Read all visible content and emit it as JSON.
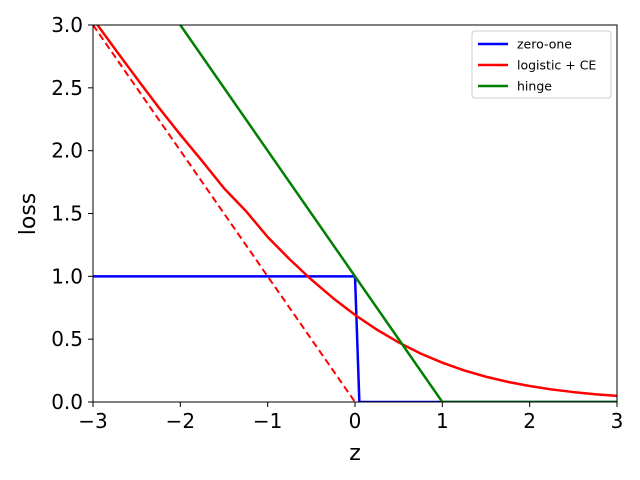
{
  "chart_data": {
    "type": "line",
    "title": "",
    "xlabel": "z",
    "ylabel": "loss",
    "xlim": [
      -3,
      3
    ],
    "ylim": [
      0,
      3
    ],
    "xticks": [
      -3,
      -2,
      -1,
      0,
      1,
      2,
      3
    ],
    "xtick_labels": [
      "−3",
      "−2",
      "−1",
      "0",
      "1",
      "2",
      "3"
    ],
    "yticks": [
      0,
      0.5,
      1,
      1.5,
      2,
      2.5,
      3
    ],
    "ytick_labels": [
      "0.0",
      "0.5",
      "1.0",
      "1.5",
      "2.0",
      "2.5",
      "3.0"
    ],
    "grid": false,
    "legend_position": "top-right",
    "series": [
      {
        "name": "zero-one",
        "color": "#0000ff",
        "style": "solid",
        "x": [
          -3,
          0,
          0.05,
          3
        ],
        "y": [
          1,
          1,
          0,
          0
        ]
      },
      {
        "name": "logistic + CE",
        "color": "#ff0000",
        "style": "solid",
        "x": [
          -3.0,
          -2.75,
          -2.5,
          -2.25,
          -2.0,
          -1.75,
          -1.5,
          -1.25,
          -1.0,
          -0.75,
          -0.5,
          -0.25,
          0.0,
          0.25,
          0.5,
          0.75,
          1.0,
          1.25,
          1.5,
          1.75,
          2.0,
          2.25,
          2.5,
          2.75,
          3.0
        ],
        "y": [
          3.049,
          2.811,
          2.576,
          2.346,
          2.127,
          1.917,
          1.701,
          1.52,
          1.313,
          1.137,
          0.974,
          0.826,
          0.693,
          0.576,
          0.474,
          0.386,
          0.313,
          0.251,
          0.201,
          0.16,
          0.127,
          0.1,
          0.079,
          0.062,
          0.049
        ]
      },
      {
        "color": "#ff0000",
        "style": "dashed",
        "x": [
          -3,
          0
        ],
        "y": [
          3,
          0
        ]
      },
      {
        "name": "hinge",
        "color": "#008000",
        "style": "solid",
        "x": [
          -2,
          1,
          3
        ],
        "y": [
          3,
          0,
          0
        ]
      }
    ]
  }
}
